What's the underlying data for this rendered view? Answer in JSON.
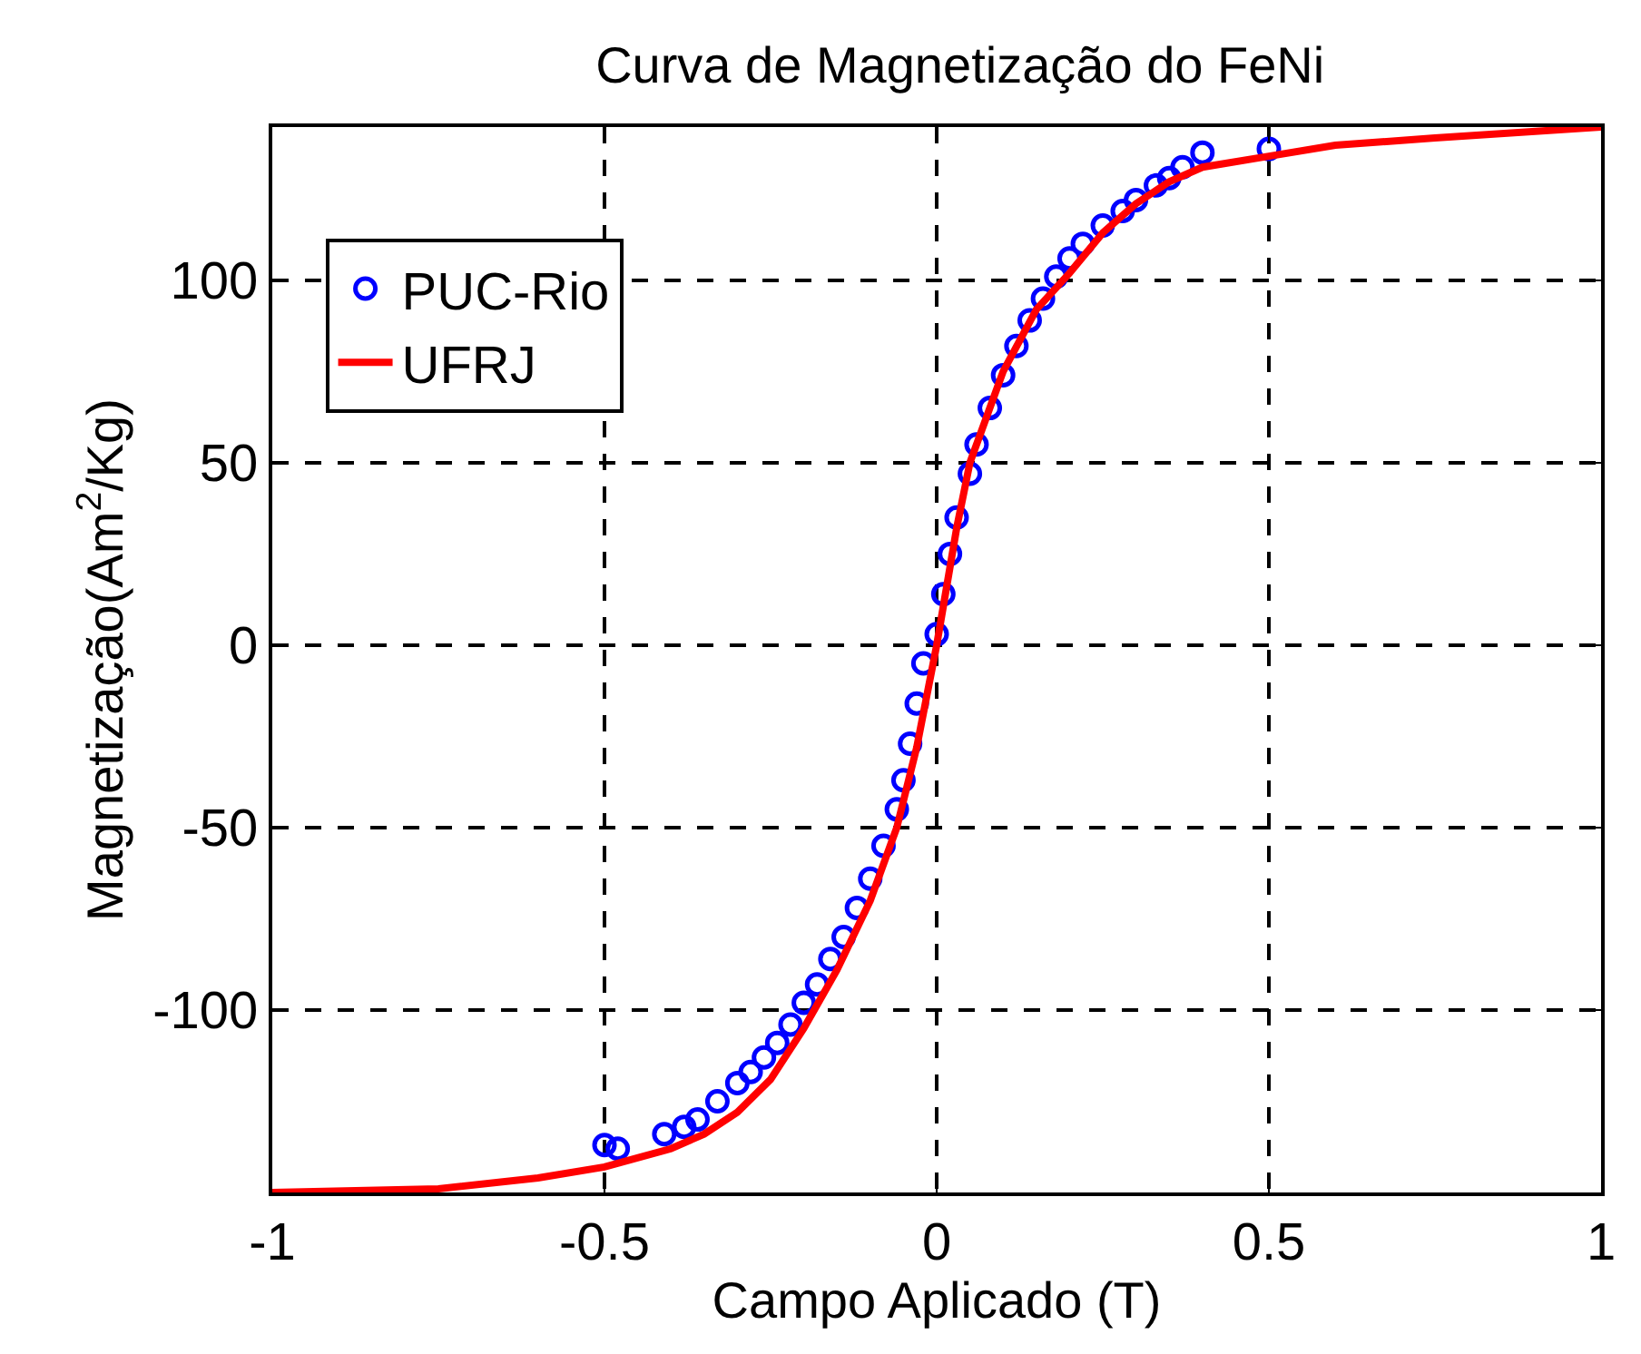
{
  "chart_data": {
    "type": "scatter",
    "title": "Curva de Magnetização do FeNi",
    "xlabel": "Campo Aplicado (T)",
    "ylabel": "Magnetização(Am$^{2}$/Kg)",
    "xlim": [
      -1,
      1
    ],
    "xticks": [
      -1,
      -0.5,
      0,
      0.5,
      1
    ],
    "ylim": [
      -150,
      142
    ],
    "yticks": [
      -100,
      -50,
      0,
      50,
      100
    ],
    "grid": true,
    "legend": "top left",
    "series": [
      {
        "name": "PUC-Rio",
        "marker": "circle",
        "color": "#0000ff",
        "x": [
          -0.5,
          -0.48,
          -0.41,
          -0.38,
          -0.36,
          -0.33,
          -0.3,
          -0.28,
          -0.26,
          -0.24,
          -0.22,
          -0.2,
          -0.18,
          -0.16,
          -0.14,
          -0.12,
          -0.1,
          -0.08,
          -0.06,
          -0.05,
          -0.04,
          -0.03,
          -0.02,
          0,
          0.01,
          0.02,
          0.03,
          0.05,
          0.06,
          0.08,
          0.1,
          0.12,
          0.14,
          0.16,
          0.18,
          0.2,
          0.22,
          0.25,
          0.28,
          0.3,
          0.33,
          0.35,
          0.37,
          0.4,
          0.5
        ],
        "values": [
          -137,
          -138,
          -134,
          -132,
          -130,
          -125,
          -120,
          -117,
          -113,
          -109,
          -104,
          -98,
          -93,
          -86,
          -80,
          -72,
          -64,
          -55,
          -45,
          -37,
          -27,
          -16,
          -5,
          3,
          14,
          25,
          35,
          47,
          55,
          65,
          74,
          82,
          89,
          95,
          101,
          106,
          110,
          115,
          119,
          122,
          126,
          128,
          131,
          135,
          136
        ]
      },
      {
        "name": "UFRJ",
        "type": "line",
        "line_style": "solid",
        "color": "#ff0000",
        "x": [
          -1,
          -0.75,
          -0.6,
          -0.5,
          -0.4,
          -0.35,
          -0.3,
          -0.25,
          -0.2,
          -0.15,
          -0.1,
          -0.06,
          -0.03,
          0,
          0.03,
          0.05,
          0.1,
          0.15,
          0.2,
          0.25,
          0.3,
          0.35,
          0.4,
          0.5,
          0.6,
          0.75,
          1
        ],
        "values": [
          -150,
          -149,
          -146,
          -143,
          -138,
          -134,
          -128,
          -119,
          -105,
          -89,
          -70,
          -50,
          -28,
          0,
          32,
          50,
          75,
          92,
          102,
          113,
          121,
          127,
          131,
          134,
          137,
          139,
          142
        ]
      }
    ]
  }
}
